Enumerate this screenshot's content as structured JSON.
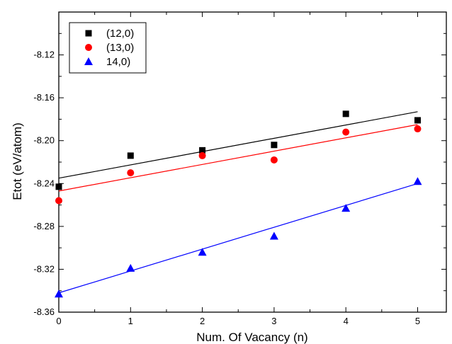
{
  "chart_data": {
    "type": "scatter",
    "xlabel": "Num. Of Vacancy (n)",
    "ylabel": "Etot (eV/atom)",
    "xlim": [
      0,
      5.4
    ],
    "ylim": [
      -8.36,
      -8.08
    ],
    "xticks": [
      0,
      1,
      2,
      3,
      4,
      5
    ],
    "yticks": [
      -8.36,
      -8.32,
      -8.28,
      -8.24,
      -8.2,
      -8.16,
      -8.12
    ],
    "xtick_labels": [
      "0",
      "1",
      "2",
      "3",
      "4",
      "5"
    ],
    "ytick_labels": [
      "-8.36",
      "-8.32",
      "-8.28",
      "-8.24",
      "-8.20",
      "-8.16",
      "-8.12"
    ],
    "grid": false,
    "legend_position": "top-left",
    "series": [
      {
        "name": "(12,0)",
        "marker": "square",
        "color": "#000000",
        "x": [
          0,
          1,
          2,
          3,
          4,
          5
        ],
        "y": [
          -8.243,
          -8.214,
          -8.209,
          -8.204,
          -8.175,
          -8.181
        ],
        "fit": [
          -8.235,
          -8.173
        ]
      },
      {
        "name": "(13,0)",
        "marker": "circle",
        "color": "#ff0000",
        "x": [
          0,
          1,
          2,
          3,
          4,
          5
        ],
        "y": [
          -8.256,
          -8.23,
          -8.214,
          -8.218,
          -8.192,
          -8.189
        ],
        "fit": [
          -8.247,
          -8.185
        ]
      },
      {
        "name": "14,0)",
        "marker": "triangle",
        "color": "#0000ff",
        "x": [
          0,
          1,
          2,
          3,
          4,
          5
        ],
        "y": [
          -8.343,
          -8.319,
          -8.304,
          -8.289,
          -8.263,
          -8.238
        ],
        "fit": [
          -8.342,
          -8.24
        ]
      }
    ]
  }
}
